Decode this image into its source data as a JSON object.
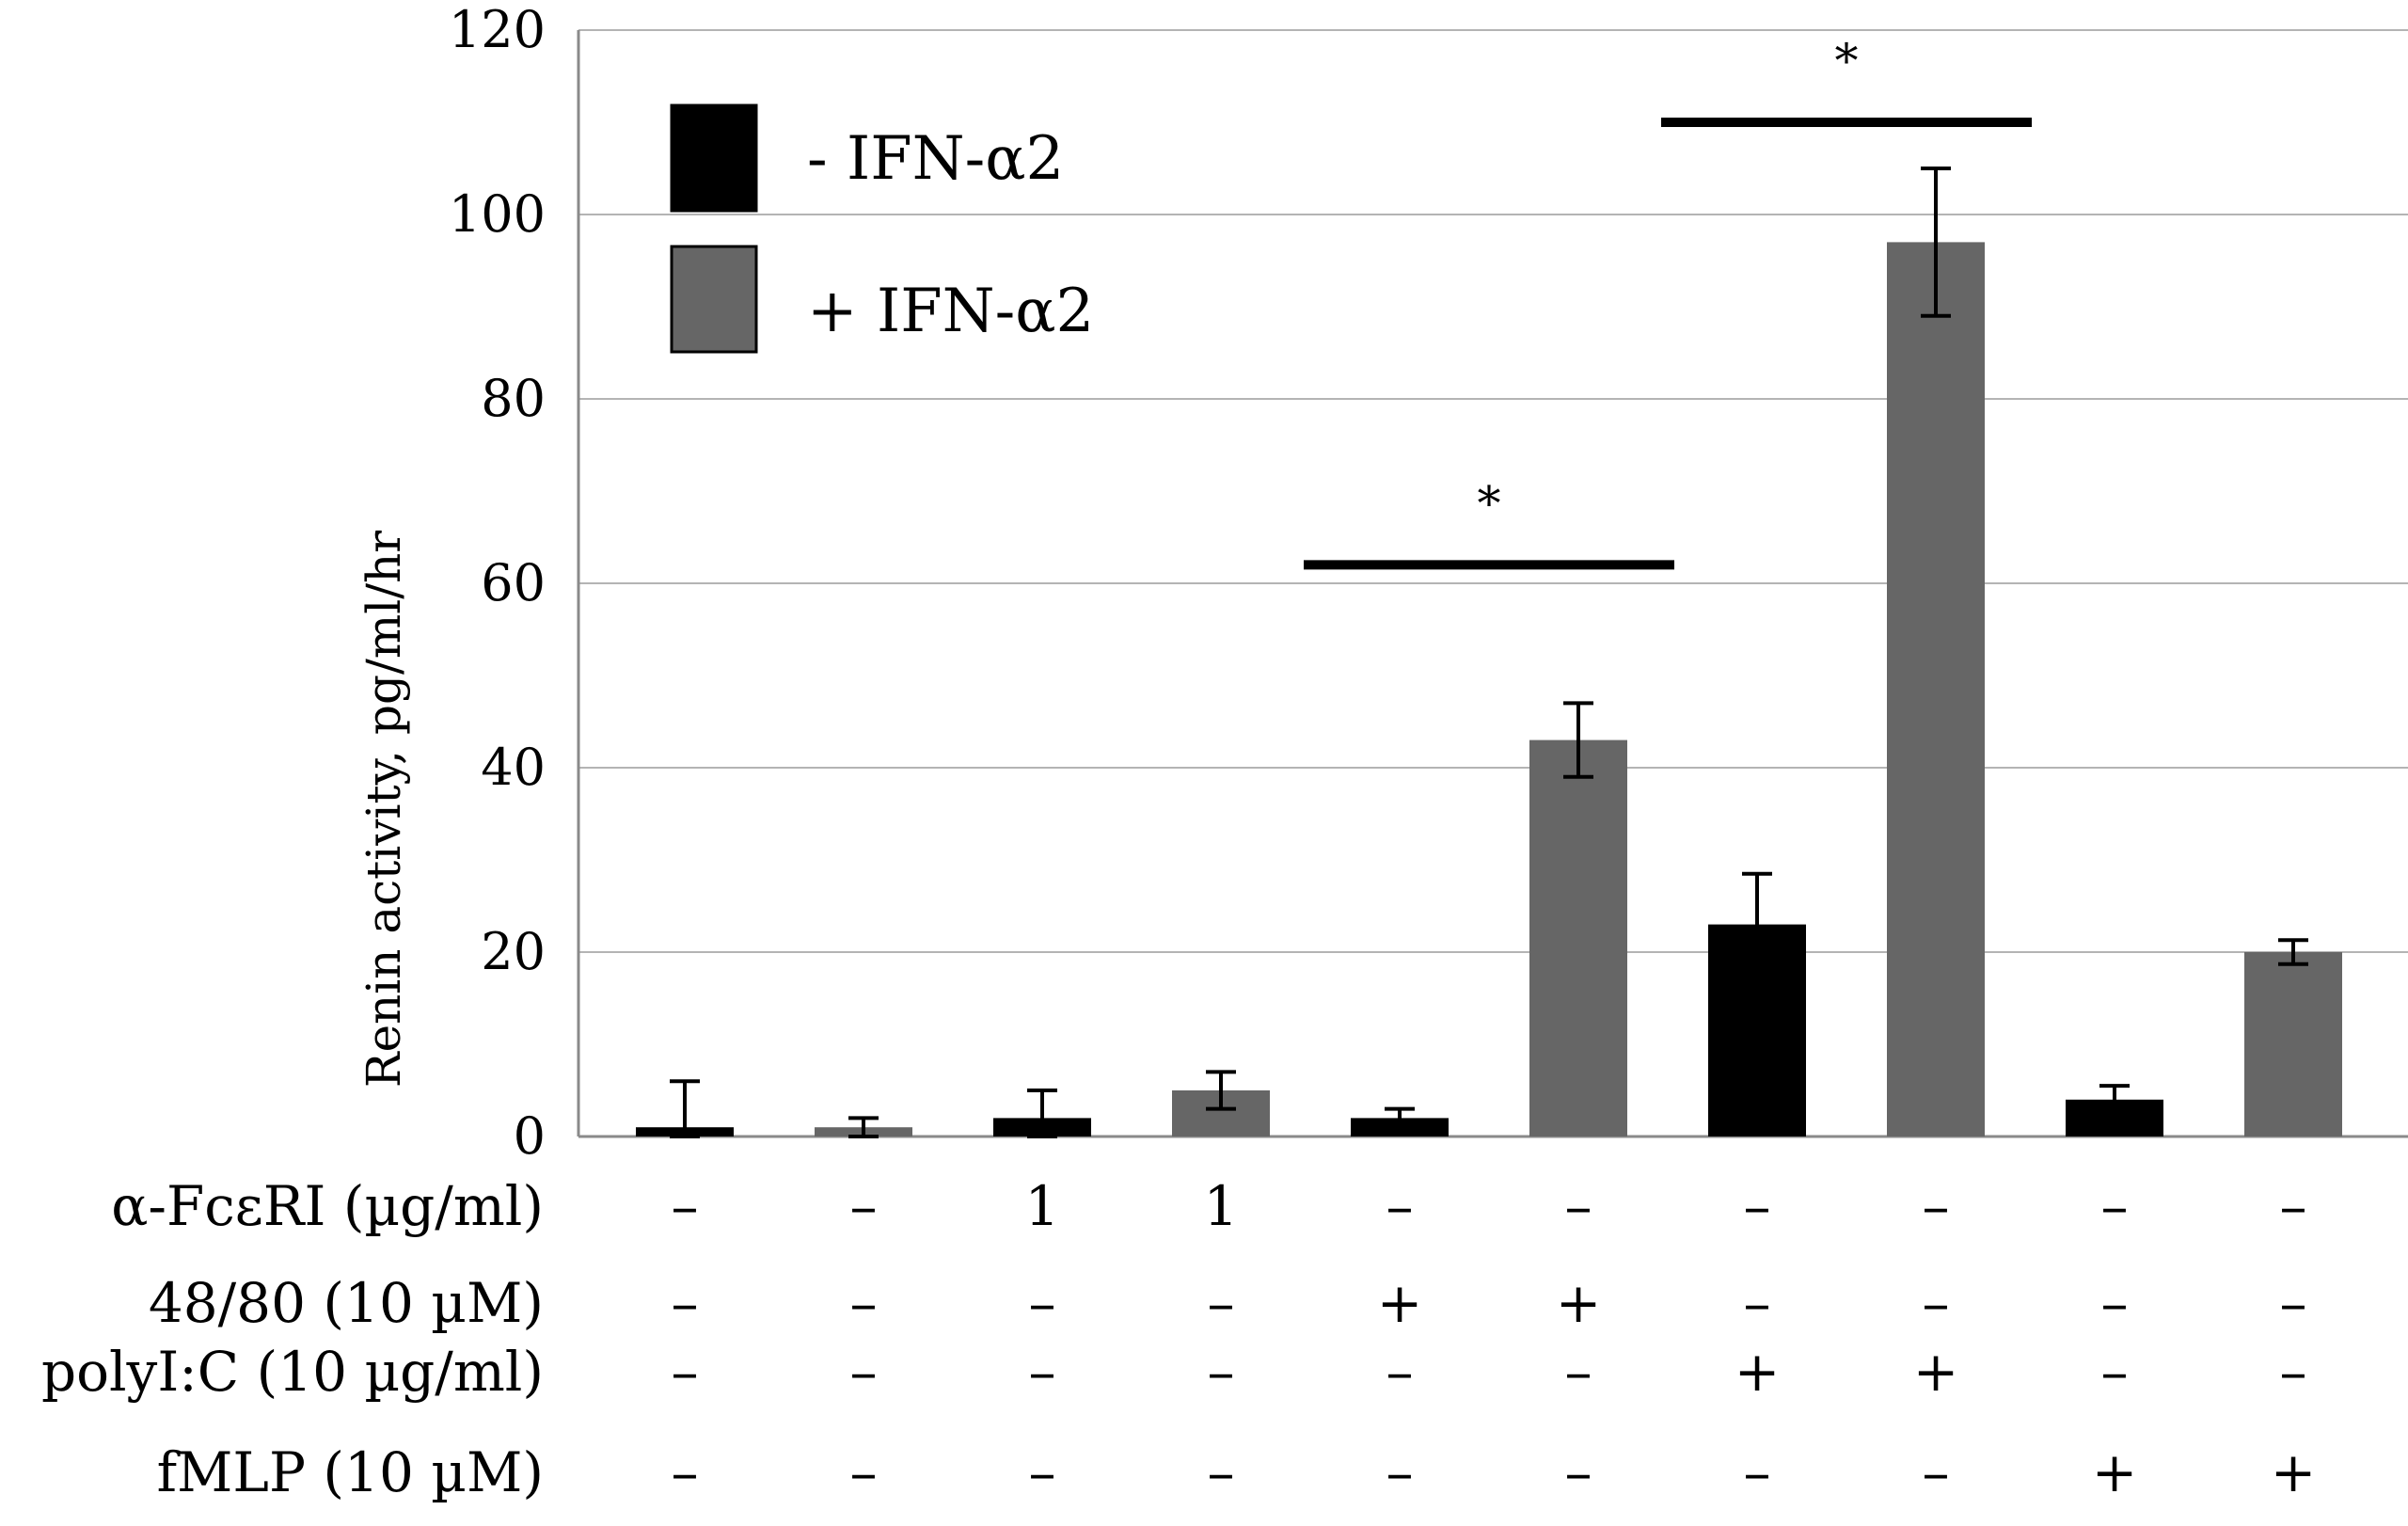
{
  "chart_data": {
    "type": "bar",
    "ylabel": "Renin activity, pg/ml/hr",
    "ylim": [
      0,
      120
    ],
    "yticks": [
      0,
      20,
      40,
      60,
      80,
      100,
      120
    ],
    "grid": true,
    "legend_position": "top-left",
    "series": [
      {
        "name": "- IFN-α2",
        "color": "#000000"
      },
      {
        "name": "+ IFN-α2",
        "color": "#666666"
      }
    ],
    "bars": [
      {
        "series": 0,
        "value": 1,
        "error": 5
      },
      {
        "series": 1,
        "value": 1,
        "error": 1
      },
      {
        "series": 0,
        "value": 2,
        "error": 3
      },
      {
        "series": 1,
        "value": 5,
        "error": 2
      },
      {
        "series": 0,
        "value": 2,
        "error": 1
      },
      {
        "series": 1,
        "value": 43,
        "error": 4
      },
      {
        "series": 0,
        "value": 23,
        "error": 5.5
      },
      {
        "series": 1,
        "value": 97,
        "error": 8
      },
      {
        "series": 0,
        "value": 4,
        "error": 1.5
      },
      {
        "series": 1,
        "value": 20,
        "error": 1.3
      }
    ],
    "conditions": [
      {
        "label": "α-FcεRI (µg/ml)",
        "values": [
          "–",
          "–",
          "1",
          "1",
          "–",
          "–",
          "–",
          "–",
          "–",
          "–"
        ]
      },
      {
        "label": "48/80 (10 µM)",
        "values": [
          "–",
          "–",
          "–",
          "–",
          "+",
          "+",
          "–",
          "–",
          "–",
          "–"
        ]
      },
      {
        "label": "polyI:C (10 µg/ml)",
        "values": [
          "–",
          "–",
          "–",
          "–",
          "–",
          "–",
          "+",
          "+",
          "–",
          "–"
        ]
      },
      {
        "label": "fMLP (10 µM)",
        "values": [
          "–",
          "–",
          "–",
          "–",
          "–",
          "–",
          "–",
          "–",
          "+",
          "+"
        ]
      }
    ],
    "significance": [
      {
        "label": "*",
        "from_bar": 4,
        "to_bar": 5,
        "level": 62
      },
      {
        "label": "*",
        "from_bar": 6,
        "to_bar": 7,
        "level": 110
      }
    ]
  }
}
